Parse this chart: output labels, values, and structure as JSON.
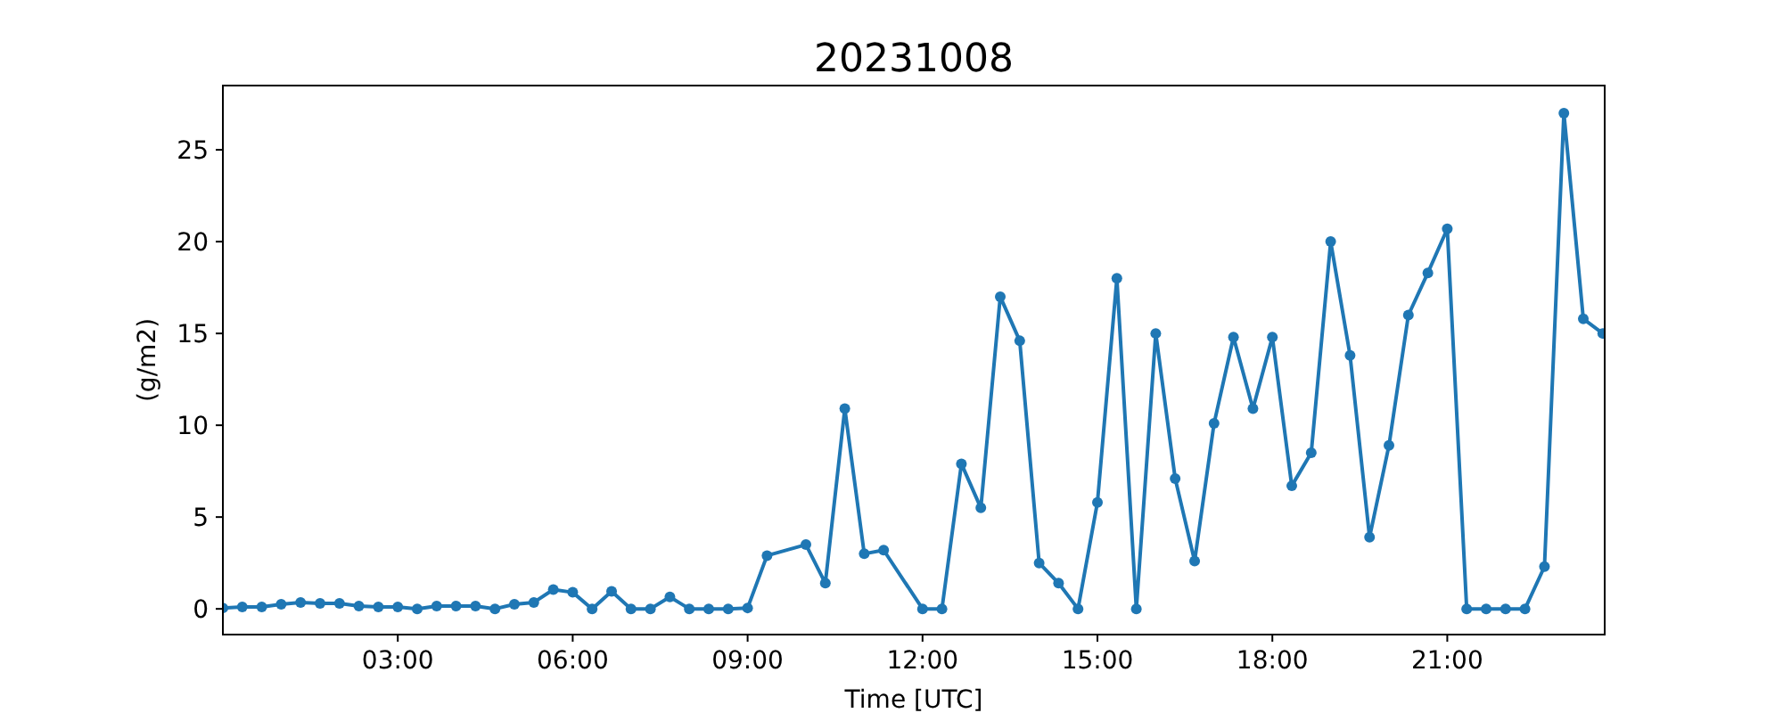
{
  "chart_data": {
    "type": "line",
    "title": "20231008",
    "xlabel": "Time [UTC]",
    "ylabel": "(g/m2)",
    "marker": "circle",
    "color": "#1f77b4",
    "x": [
      0,
      0.333,
      0.667,
      1,
      1.333,
      1.667,
      2,
      2.333,
      2.667,
      3,
      3.333,
      3.667,
      4,
      4.333,
      4.667,
      5,
      5.333,
      5.667,
      6,
      6.333,
      6.667,
      7,
      7.333,
      7.667,
      8,
      8.333,
      8.667,
      9,
      9.333,
      10,
      10.333,
      10.667,
      11,
      11.333,
      12,
      12.333,
      12.667,
      13,
      13.333,
      13.667,
      14,
      14.333,
      14.667,
      15,
      15.333,
      15.667,
      16,
      16.333,
      16.667,
      17,
      17.333,
      17.667,
      18,
      18.333,
      18.667,
      19,
      19.333,
      19.667,
      20,
      20.333,
      20.667,
      21,
      21.333,
      21.667,
      22,
      22.333,
      22.667,
      23,
      23.333,
      23.667
    ],
    "values": [
      0.05,
      0.1,
      0.1,
      0.25,
      0.35,
      0.3,
      0.3,
      0.15,
      0.1,
      0.1,
      0,
      0.15,
      0.15,
      0.15,
      0,
      0.25,
      0.35,
      1.05,
      0.9,
      0,
      0.95,
      0,
      0,
      0.65,
      0,
      0,
      0,
      0.05,
      2.9,
      3.5,
      1.4,
      10.9,
      3,
      3.2,
      0,
      0,
      7.9,
      5.5,
      17,
      14.6,
      2.5,
      1.4,
      0,
      5.8,
      18,
      0,
      15,
      7.1,
      2.6,
      10.1,
      14.8,
      10.9,
      14.8,
      6.7,
      8.5,
      20,
      13.8,
      3.9,
      8.9,
      16,
      18.3,
      20.7,
      0,
      0,
      0,
      0,
      2.3,
      27,
      15.8,
      15
    ],
    "xlim": [
      0,
      23.7
    ],
    "ylim": [
      -1.4,
      28.5
    ],
    "xticks": [
      {
        "value": 3,
        "label": "03:00"
      },
      {
        "value": 6,
        "label": "06:00"
      },
      {
        "value": 9,
        "label": "09:00"
      },
      {
        "value": 12,
        "label": "12:00"
      },
      {
        "value": 15,
        "label": "15:00"
      },
      {
        "value": 18,
        "label": "18:00"
      },
      {
        "value": 21,
        "label": "21:00"
      }
    ],
    "yticks": [
      0,
      5,
      10,
      15,
      20,
      25
    ]
  }
}
